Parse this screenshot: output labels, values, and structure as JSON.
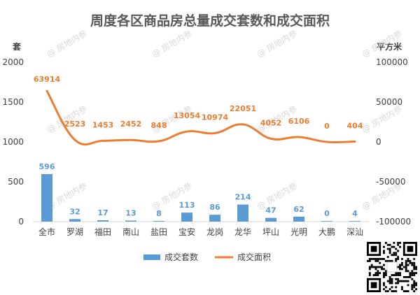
{
  "chart_data": {
    "type": "bar",
    "title": "周度各区商品房总量成交套数和成交面积",
    "categories": [
      "全市",
      "罗湖",
      "福田",
      "南山",
      "盐田",
      "宝安",
      "龙岗",
      "龙华",
      "坪山",
      "光明",
      "大鹏",
      "深汕"
    ],
    "series": [
      {
        "name": "成交套数",
        "type": "bar",
        "axis": "left",
        "color": "#5b9bd5",
        "values": [
          596,
          32,
          17,
          13,
          8,
          113,
          86,
          214,
          47,
          62,
          0,
          4
        ]
      },
      {
        "name": "成交面积",
        "type": "line",
        "axis": "right",
        "color": "#ed7d31",
        "values": [
          63914,
          2523,
          1453,
          2452,
          848,
          13054,
          10974,
          22051,
          4052,
          6106,
          0,
          404
        ]
      }
    ],
    "y_left": {
      "label": "套",
      "range": [
        0,
        2000
      ],
      "ticks": [
        0,
        500,
        1000,
        1500,
        2000
      ]
    },
    "y_right": {
      "label": "平方米",
      "range": [
        -100000,
        100000
      ],
      "ticks": [
        -100000,
        -50000,
        0,
        50000,
        100000
      ]
    },
    "legend": {
      "position": "bottom"
    },
    "grid": false
  },
  "watermark": "@ 房地内参",
  "qr_code_icon": "qr-code-icon"
}
